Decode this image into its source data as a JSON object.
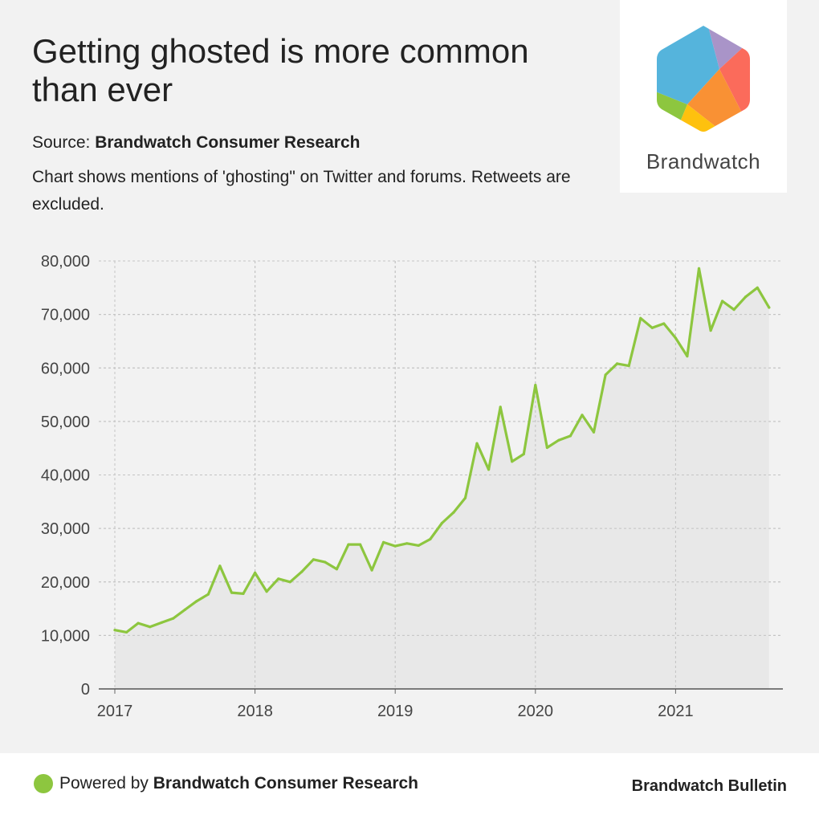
{
  "header": {
    "title": "Getting ghosted is more common than ever",
    "source_prefix": "Source: ",
    "source_name": "Brandwatch Consumer Research",
    "description": "Chart shows mentions of 'ghosting\" on Twitter and forums. Retweets are excluded."
  },
  "logo": {
    "text": "Brandwatch",
    "colors": [
      "#55b4dc",
      "#a994c8",
      "#fb6b5b",
      "#f99134",
      "#fec10e",
      "#8dc63f"
    ]
  },
  "footer": {
    "powered_prefix": "Powered by ",
    "powered_name": "Brandwatch Consumer Research",
    "right": "Brandwatch Bulletin",
    "dot_color": "#8dc63f"
  },
  "chart_data": {
    "type": "area",
    "title": "",
    "xlabel": "",
    "ylabel": "",
    "ylim": [
      0,
      80000
    ],
    "yticks": [
      0,
      10000,
      20000,
      30000,
      40000,
      50000,
      60000,
      70000,
      80000
    ],
    "ytick_labels": [
      "0",
      "10,000",
      "20,000",
      "30,000",
      "40,000",
      "50,000",
      "60,000",
      "70,000",
      "80,000"
    ],
    "xticks": [
      "2017",
      "2018",
      "2019",
      "2020",
      "2021"
    ],
    "xlim": [
      "2017-01",
      "2021-09"
    ],
    "grid": true,
    "line_color": "#8dc63f",
    "fill_color": "#e6e6e6",
    "series": [
      {
        "x": [
          "2017-01",
          "2017-02",
          "2017-03",
          "2017-04",
          "2017-05",
          "2017-06",
          "2017-07",
          "2017-08",
          "2017-09",
          "2017-10",
          "2017-11",
          "2017-12",
          "2018-01",
          "2018-02",
          "2018-03",
          "2018-04",
          "2018-05",
          "2018-06",
          "2018-07",
          "2018-08",
          "2018-09",
          "2018-10",
          "2018-11",
          "2018-12",
          "2019-01",
          "2019-02",
          "2019-03",
          "2019-04",
          "2019-05",
          "2019-06",
          "2019-07",
          "2019-08",
          "2019-09",
          "2019-10",
          "2019-11",
          "2019-12",
          "2020-01",
          "2020-02",
          "2020-03",
          "2020-04",
          "2020-05",
          "2020-06",
          "2020-07",
          "2020-08",
          "2020-09",
          "2020-10",
          "2020-11",
          "2020-12",
          "2021-01",
          "2021-02",
          "2021-03",
          "2021-04",
          "2021-05",
          "2021-06",
          "2021-07",
          "2021-08",
          "2021-09"
        ],
        "values": [
          11000,
          10600,
          12300,
          11600,
          12400,
          13200,
          14800,
          16400,
          17700,
          23000,
          18000,
          17800,
          21700,
          18200,
          20600,
          20000,
          21900,
          24200,
          23700,
          22400,
          27000,
          27000,
          22200,
          27400,
          26700,
          27200,
          26800,
          28000,
          31000,
          33000,
          35700,
          45900,
          41000,
          52700,
          42500,
          43900,
          56800,
          45100,
          46500,
          47300,
          51200,
          48000,
          58700,
          60800,
          60400,
          69300,
          67500,
          68300,
          65600,
          62200,
          78600,
          67000,
          72500,
          70900,
          73300,
          75000,
          71300
        ]
      }
    ]
  }
}
